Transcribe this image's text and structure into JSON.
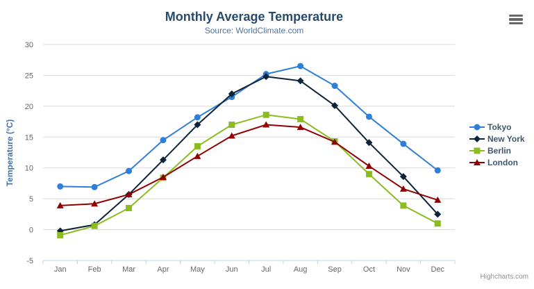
{
  "chart_data": {
    "type": "line",
    "title": "Monthly Average Temperature",
    "subtitle": "Source: WorldClimate.com",
    "xlabel": "",
    "ylabel": "Temperature (°C)",
    "ylim": [
      -5,
      30
    ],
    "yticks": [
      30,
      25,
      20,
      15,
      10,
      5,
      0,
      -5
    ],
    "grid": true,
    "legend_position": "right",
    "categories": [
      "Jan",
      "Feb",
      "Mar",
      "Apr",
      "May",
      "Jun",
      "Jul",
      "Aug",
      "Sep",
      "Oct",
      "Nov",
      "Dec"
    ],
    "series": [
      {
        "name": "Tokyo",
        "color": "#2f7ed8",
        "marker": "circle",
        "values": [
          7.0,
          6.9,
          9.5,
          14.5,
          18.2,
          21.5,
          25.2,
          26.5,
          23.3,
          18.3,
          13.9,
          9.6
        ]
      },
      {
        "name": "New York",
        "color": "#0d233a",
        "marker": "diamond",
        "values": [
          -0.2,
          0.8,
          5.7,
          11.3,
          17.0,
          22.0,
          24.8,
          24.1,
          20.1,
          14.1,
          8.6,
          2.5
        ]
      },
      {
        "name": "Berlin",
        "color": "#8bbc21",
        "marker": "square",
        "values": [
          -0.9,
          0.6,
          3.5,
          8.4,
          13.5,
          17.0,
          18.6,
          17.9,
          14.3,
          9.0,
          3.9,
          1.0
        ]
      },
      {
        "name": "London",
        "color": "#910000",
        "marker": "triangle",
        "values": [
          3.9,
          4.2,
          5.7,
          8.5,
          11.9,
          15.2,
          17.0,
          16.6,
          14.2,
          10.3,
          6.6,
          4.8
        ]
      }
    ]
  },
  "credits": "Highcharts.com",
  "icons": {
    "menu": "hamburger-menu-icon"
  },
  "colors": {
    "title": "#274b6d",
    "subtitle": "#4d759e",
    "axis_title": "#4572a7",
    "axis_labels": "#666666",
    "grid_line": "#d8d8d8",
    "axis_line": "#c0d0e0",
    "legend_text": "#3e576f",
    "credits_text": "#909090",
    "menu_icon": "#666666"
  }
}
